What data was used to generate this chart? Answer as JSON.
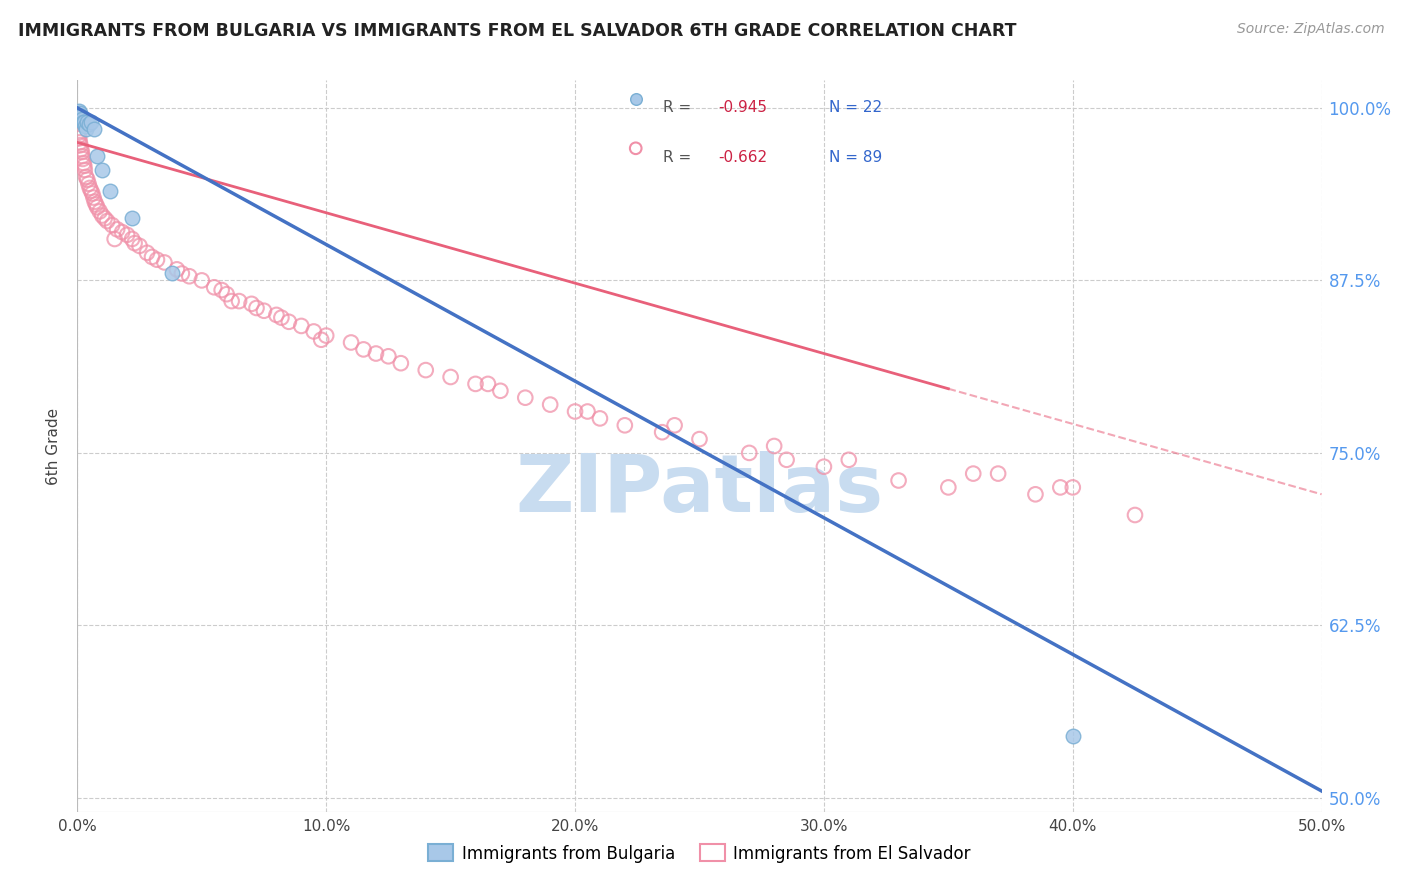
{
  "title": "IMMIGRANTS FROM BULGARIA VS IMMIGRANTS FROM EL SALVADOR 6TH GRADE CORRELATION CHART",
  "source": "Source: ZipAtlas.com",
  "ylabel": "6th Grade",
  "xlim": [
    0.0,
    50.0
  ],
  "ylim": [
    49.0,
    102.0
  ],
  "yticks": [
    50.0,
    62.5,
    75.0,
    87.5,
    100.0
  ],
  "xticks": [
    0.0,
    10.0,
    20.0,
    30.0,
    40.0,
    50.0
  ],
  "xtick_labels": [
    "0.0%",
    "10.0%",
    "20.0%",
    "30.0%",
    "40.0%",
    "50.0%"
  ],
  "ytick_labels": [
    "50.0%",
    "62.5%",
    "75.0%",
    "87.5%",
    "100.0%"
  ],
  "bulgaria_scatter_facecolor": "#A8C8E8",
  "bulgaria_scatter_edge": "#7AAFD4",
  "salvador_scatter_edge": "#F090A8",
  "bulgaria_line_color": "#4472C4",
  "salvador_line_color": "#E8607A",
  "grid_color": "#CCCCCC",
  "right_axis_color": "#5599EE",
  "watermark_color": "#C8DCF0",
  "title_color": "#222222",
  "source_color": "#999999",
  "legend_label_bulgaria": "Immigrants from Bulgaria",
  "legend_label_salvador": "Immigrants from El Salvador",
  "legend_R_bul": "-0.945",
  "legend_N_bul": "22",
  "legend_R_sal": "-0.662",
  "legend_N_sal": "89",
  "bul_line_x0": 0.0,
  "bul_line_y0": 100.0,
  "bul_line_x1": 50.0,
  "bul_line_y1": 50.5,
  "sal_line_x0": 0.0,
  "sal_line_y0": 97.5,
  "sal_line_x1": 50.0,
  "sal_line_y1": 72.0,
  "sal_solid_end_x": 35.0,
  "bulgaria_x": [
    0.05,
    0.08,
    0.1,
    0.12,
    0.15,
    0.18,
    0.2,
    0.22,
    0.25,
    0.28,
    0.3,
    0.35,
    0.4,
    0.45,
    0.55,
    0.65,
    0.8,
    1.0,
    1.3,
    2.2,
    3.8,
    40.0
  ],
  "bulgaria_y": [
    99.8,
    99.5,
    99.6,
    99.3,
    99.4,
    99.1,
    99.2,
    99.0,
    98.8,
    99.0,
    98.7,
    98.5,
    99.0,
    98.8,
    99.0,
    98.5,
    96.5,
    95.5,
    94.0,
    92.0,
    88.0,
    54.5
  ],
  "salvador_x": [
    0.04,
    0.06,
    0.08,
    0.1,
    0.12,
    0.15,
    0.18,
    0.2,
    0.22,
    0.25,
    0.28,
    0.3,
    0.35,
    0.4,
    0.45,
    0.5,
    0.55,
    0.6,
    0.65,
    0.7,
    0.75,
    0.8,
    0.9,
    1.0,
    1.1,
    1.2,
    1.4,
    1.6,
    1.8,
    2.0,
    2.2,
    2.5,
    2.8,
    3.2,
    3.5,
    4.0,
    4.5,
    5.0,
    5.5,
    6.0,
    6.5,
    7.0,
    7.5,
    8.0,
    8.5,
    9.0,
    9.5,
    10.0,
    11.0,
    11.5,
    12.0,
    13.0,
    14.0,
    15.0,
    16.0,
    17.0,
    18.0,
    19.0,
    20.0,
    21.0,
    22.0,
    23.5,
    25.0,
    27.0,
    28.5,
    30.0,
    33.0,
    35.0,
    37.0,
    38.5,
    40.0,
    42.5,
    1.5,
    2.3,
    3.0,
    4.2,
    5.8,
    7.2,
    9.8,
    12.5,
    16.5,
    20.5,
    24.0,
    28.0,
    31.0,
    36.0,
    39.5,
    6.2,
    8.2
  ],
  "salvador_y": [
    98.2,
    98.0,
    97.8,
    97.5,
    97.3,
    97.0,
    96.8,
    96.5,
    96.3,
    96.0,
    95.8,
    95.5,
    95.0,
    94.8,
    94.5,
    94.2,
    94.0,
    93.8,
    93.5,
    93.2,
    93.0,
    92.8,
    92.5,
    92.2,
    92.0,
    91.8,
    91.5,
    91.2,
    91.0,
    90.8,
    90.5,
    90.0,
    89.5,
    89.0,
    88.8,
    88.3,
    87.8,
    87.5,
    87.0,
    86.5,
    86.0,
    85.8,
    85.3,
    85.0,
    84.5,
    84.2,
    83.8,
    83.5,
    83.0,
    82.5,
    82.2,
    81.5,
    81.0,
    80.5,
    80.0,
    79.5,
    79.0,
    78.5,
    78.0,
    77.5,
    77.0,
    76.5,
    76.0,
    75.0,
    74.5,
    74.0,
    73.0,
    72.5,
    73.5,
    72.0,
    72.5,
    70.5,
    90.5,
    90.2,
    89.2,
    88.0,
    86.8,
    85.5,
    83.2,
    82.0,
    80.0,
    78.0,
    77.0,
    75.5,
    74.5,
    73.5,
    72.5,
    86.0,
    84.8
  ]
}
